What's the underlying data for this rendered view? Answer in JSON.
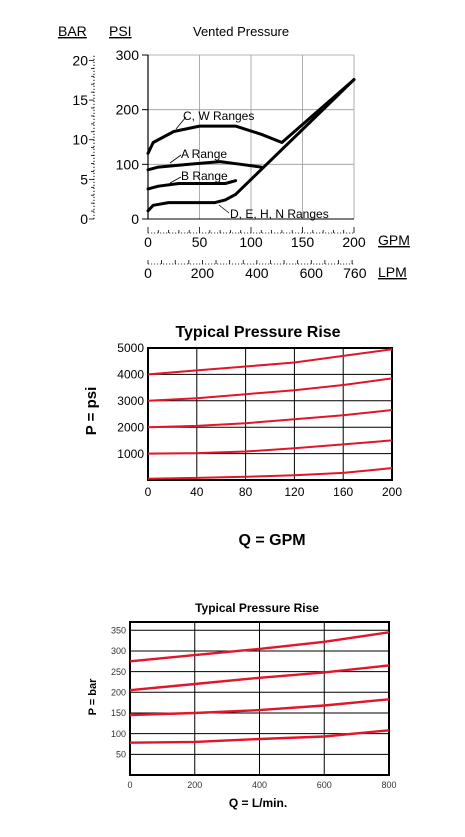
{
  "chart_data": [
    {
      "type": "line",
      "title": "Vented Pressure",
      "y_units_primary": "PSI",
      "y_units_secondary": "BAR",
      "x_units_primary": "GPM",
      "x_units_secondary": "LPM",
      "psi_ticks": [
        0,
        100,
        200,
        300
      ],
      "bar_ticks": [
        0,
        5,
        10,
        15,
        20
      ],
      "gpm_ticks": [
        0,
        50,
        100,
        150,
        200
      ],
      "lpm_ticks": [
        0,
        200,
        400,
        600,
        760
      ],
      "xlim": [
        0,
        200
      ],
      "ylim": [
        0,
        300
      ],
      "grid": true,
      "series": [
        {
          "name": "C, W Ranges",
          "points": [
            [
              0,
              120
            ],
            [
              5,
              140
            ],
            [
              25,
              160
            ],
            [
              50,
              170
            ],
            [
              85,
              170
            ],
            [
              110,
              155
            ],
            [
              130,
              140
            ],
            [
              200,
              255
            ]
          ]
        },
        {
          "name": "A Range",
          "points": [
            [
              0,
              90
            ],
            [
              10,
              95
            ],
            [
              40,
              100
            ],
            [
              70,
              105
            ],
            [
              90,
              100
            ],
            [
              110,
              95
            ]
          ]
        },
        {
          "name": "B Range",
          "points": [
            [
              0,
              55
            ],
            [
              10,
              60
            ],
            [
              30,
              65
            ],
            [
              50,
              65
            ],
            [
              75,
              65
            ],
            [
              85,
              70
            ]
          ]
        },
        {
          "name": "D, E, H, N Ranges",
          "points": [
            [
              0,
              15
            ],
            [
              5,
              25
            ],
            [
              20,
              30
            ],
            [
              45,
              30
            ],
            [
              65,
              30
            ],
            [
              75,
              35
            ],
            [
              85,
              45
            ]
          ]
        },
        {
          "name": "",
          "points": [
            [
              85,
              45
            ],
            [
              200,
              255
            ]
          ]
        }
      ]
    },
    {
      "type": "line",
      "title": "Typical Pressure Rise",
      "xlabel": "Q = GPM",
      "ylabel": "P = psi",
      "x_ticks": [
        0,
        40,
        80,
        120,
        160,
        200
      ],
      "y_ticks": [
        1000,
        2000,
        3000,
        4000,
        5000
      ],
      "xlim": [
        0,
        200
      ],
      "ylim": [
        0,
        5000
      ],
      "grid": true,
      "line_color": "#e3152b",
      "series": [
        {
          "points": [
            [
              0,
              4000
            ],
            [
              40,
              4150
            ],
            [
              80,
              4300
            ],
            [
              120,
              4450
            ],
            [
              160,
              4700
            ],
            [
              200,
              4950
            ]
          ]
        },
        {
          "points": [
            [
              0,
              3000
            ],
            [
              40,
              3100
            ],
            [
              80,
              3250
            ],
            [
              120,
              3400
            ],
            [
              160,
              3600
            ],
            [
              200,
              3850
            ]
          ]
        },
        {
          "points": [
            [
              0,
              2000
            ],
            [
              40,
              2050
            ],
            [
              80,
              2150
            ],
            [
              120,
              2300
            ],
            [
              160,
              2450
            ],
            [
              200,
              2650
            ]
          ]
        },
        {
          "points": [
            [
              0,
              1000
            ],
            [
              40,
              1020
            ],
            [
              80,
              1080
            ],
            [
              120,
              1200
            ],
            [
              160,
              1350
            ],
            [
              200,
              1500
            ]
          ]
        },
        {
          "points": [
            [
              0,
              50
            ],
            [
              40,
              80
            ],
            [
              80,
              120
            ],
            [
              120,
              180
            ],
            [
              160,
              270
            ],
            [
              200,
              450
            ]
          ]
        }
      ]
    },
    {
      "type": "line",
      "title": "Typical Pressure Rise",
      "xlabel": "Q = L/min.",
      "ylabel": "P = bar",
      "x_ticks": [
        0,
        200,
        400,
        600,
        800
      ],
      "y_ticks": [
        50,
        100,
        150,
        200,
        250,
        300,
        350
      ],
      "xlim": [
        0,
        800
      ],
      "ylim": [
        0,
        370
      ],
      "grid": true,
      "line_color": "#e3152b",
      "series": [
        {
          "points": [
            [
              0,
              275
            ],
            [
              200,
              290
            ],
            [
              400,
              305
            ],
            [
              600,
              322
            ],
            [
              800,
              345
            ]
          ]
        },
        {
          "points": [
            [
              0,
              205
            ],
            [
              200,
              220
            ],
            [
              400,
              235
            ],
            [
              600,
              248
            ],
            [
              800,
              265
            ]
          ]
        },
        {
          "points": [
            [
              0,
              145
            ],
            [
              200,
              150
            ],
            [
              400,
              157
            ],
            [
              600,
              168
            ],
            [
              800,
              183
            ]
          ]
        },
        {
          "points": [
            [
              0,
              78
            ],
            [
              200,
              80
            ],
            [
              400,
              87
            ],
            [
              600,
              93
            ],
            [
              800,
              108
            ]
          ]
        }
      ]
    }
  ]
}
